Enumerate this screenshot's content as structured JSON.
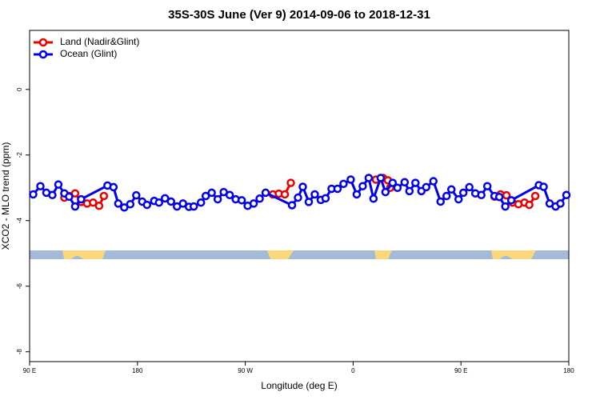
{
  "chart_data": {
    "type": "line",
    "title": "35S-30S June (Ver 9)   2014-09-06 to 2018-12-31",
    "x_label": "Longitude (deg E)",
    "y_label": "XCO2 - MLO trend (ppm)",
    "xlim": [
      90,
      540
    ],
    "ylim": [
      -8.3,
      1.8
    ],
    "xticks": [
      {
        "value": 90,
        "label": "90 E"
      },
      180,
      {
        "value": 270,
        "label": "90 W"
      },
      {
        "value": 360,
        "label": "0"
      },
      {
        "value": 450,
        "label": "90 E"
      },
      {
        "value": 540,
        "label": "180"
      }
    ],
    "yticks": [
      0,
      -2,
      -4,
      -6,
      -8
    ],
    "legend": "top-left",
    "series": [
      {
        "name": "Land (Nadir&Glint)",
        "color": "#ee0000",
        "x": [
          119,
          123,
          128,
          133,
          138,
          143,
          148,
          152,
          null,
          293,
          298,
          303,
          308,
          null,
          379,
          385,
          389,
          391,
          null,
          478,
          483,
          488,
          493,
          498,
          503,
          507,
          512
        ],
        "values": [
          -3.3,
          -3.25,
          -3.17,
          -3.43,
          -3.48,
          -3.45,
          -3.55,
          -3.25,
          null,
          -3.2,
          -3.18,
          -3.2,
          -2.85,
          null,
          -2.75,
          -2.7,
          -2.77,
          -3.0,
          null,
          -3.27,
          -3.2,
          -3.23,
          -3.45,
          -3.5,
          -3.45,
          -3.52,
          -3.25
        ]
      },
      {
        "name": "Ocean (Glint)",
        "color": "#0000ee",
        "x": [
          93,
          99,
          104,
          109,
          114,
          119,
          123,
          128,
          133,
          155,
          160,
          164,
          169,
          174,
          179,
          184,
          188,
          194,
          198,
          203,
          208,
          213,
          218,
          223,
          227,
          233,
          237,
          242,
          247,
          252,
          257,
          262,
          267,
          272,
          277,
          282,
          287,
          309,
          314,
          318,
          323,
          328,
          333,
          337,
          342,
          347,
          352,
          358,
          363,
          368,
          373,
          377,
          383,
          387,
          393,
          397,
          403,
          407,
          412,
          417,
          421,
          427,
          433,
          438,
          442,
          448,
          452,
          457,
          462,
          467,
          472,
          478,
          482,
          487,
          492,
          515,
          519,
          524,
          529,
          533,
          538
        ],
        "values": [
          -3.2,
          -2.95,
          -3.15,
          -3.22,
          -2.9,
          -3.17,
          -3.27,
          -3.57,
          -3.35,
          -2.93,
          -2.98,
          -3.48,
          -3.6,
          -3.5,
          -3.23,
          -3.42,
          -3.52,
          -3.4,
          -3.45,
          -3.32,
          -3.42,
          -3.57,
          -3.48,
          -3.58,
          -3.57,
          -3.45,
          -3.25,
          -3.15,
          -3.35,
          -3.13,
          -3.22,
          -3.35,
          -3.38,
          -3.55,
          -3.48,
          -3.33,
          -3.15,
          -3.53,
          -3.3,
          -2.97,
          -3.43,
          -3.2,
          -3.37,
          -3.32,
          -3.03,
          -3.03,
          -2.88,
          -2.75,
          -3.2,
          -2.95,
          -2.7,
          -3.33,
          -2.7,
          -3.13,
          -2.85,
          -3.0,
          -2.83,
          -3.1,
          -2.85,
          -3.1,
          -2.98,
          -2.8,
          -3.42,
          -3.25,
          -3.05,
          -3.35,
          -3.15,
          -2.98,
          -3.17,
          -3.22,
          -2.95,
          -3.25,
          -3.28,
          -3.57,
          -3.38,
          -2.92,
          -2.97,
          -3.48,
          -3.57,
          -3.48,
          -3.22
        ]
      }
    ]
  }
}
